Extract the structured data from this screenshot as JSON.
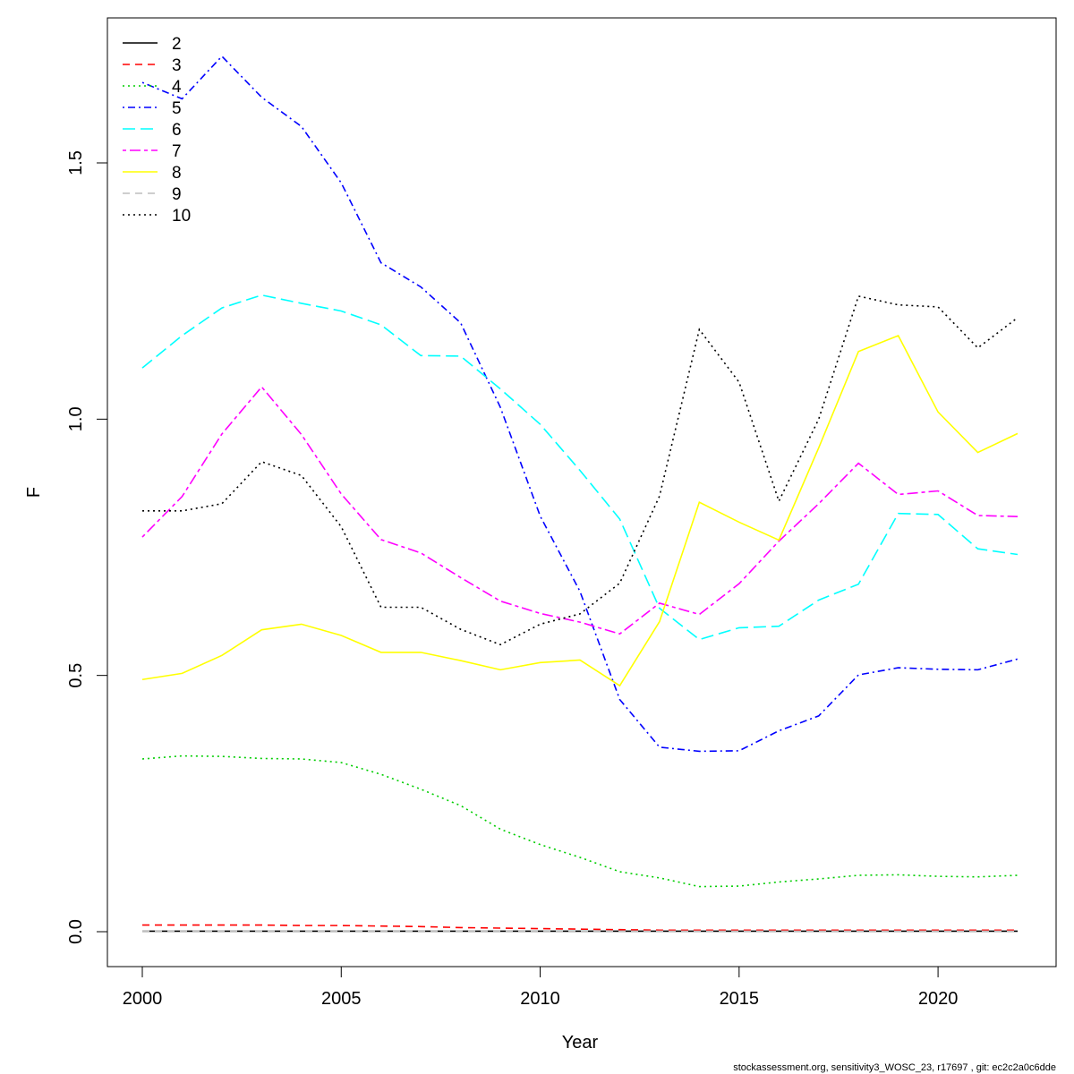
{
  "footer": "stockassessment.org, sensitivity3_WOSC_23, r17697 , git: ec2c2a0c6dde",
  "chart_data": {
    "type": "line",
    "xlabel": "Year",
    "ylabel": "F",
    "xlim": [
      2000,
      2022
    ],
    "ylim": [
      0,
      1.7
    ],
    "x_ticks": [
      2000,
      2005,
      2010,
      2015,
      2020
    ],
    "y_ticks": [
      0.0,
      0.5,
      1.0,
      1.5
    ],
    "y_tick_labels": [
      "0.0",
      "0.5",
      "1.0",
      "1.5"
    ],
    "grid": false,
    "legend_position": "top-left",
    "x": [
      2000,
      2001,
      2002,
      2003,
      2004,
      2005,
      2006,
      2007,
      2008,
      2009,
      2010,
      2011,
      2012,
      2013,
      2014,
      2015,
      2016,
      2017,
      2018,
      2019,
      2020,
      2021,
      2022
    ],
    "series": [
      {
        "name": "2",
        "color": "#000000",
        "dash": "solid",
        "values": [
          0.001,
          0.001,
          0.001,
          0.001,
          0.001,
          0.001,
          0.001,
          0.001,
          0.001,
          0.001,
          0.001,
          0.001,
          0.001,
          0.001,
          0.001,
          0.001,
          0.001,
          0.001,
          0.001,
          0.001,
          0.001,
          0.001,
          0.001
        ]
      },
      {
        "name": "3",
        "color": "#ff0000",
        "dash": "dashed",
        "values": [
          0.013,
          0.013,
          0.013,
          0.013,
          0.012,
          0.012,
          0.011,
          0.01,
          0.008,
          0.007,
          0.006,
          0.005,
          0.004,
          0.003,
          0.003,
          0.003,
          0.003,
          0.003,
          0.003,
          0.003,
          0.003,
          0.003,
          0.003
        ]
      },
      {
        "name": "4",
        "color": "#00cd00",
        "dash": "dotted",
        "values": [
          0.337,
          0.343,
          0.342,
          0.338,
          0.337,
          0.33,
          0.307,
          0.278,
          0.246,
          0.2,
          0.17,
          0.145,
          0.117,
          0.105,
          0.088,
          0.089,
          0.097,
          0.103,
          0.11,
          0.111,
          0.108,
          0.107,
          0.11
        ]
      },
      {
        "name": "5",
        "color": "#0000ff",
        "dash": "dotdash",
        "values": [
          1.657,
          1.625,
          1.708,
          1.628,
          1.571,
          1.461,
          1.305,
          1.258,
          1.188,
          1.023,
          0.811,
          0.664,
          0.453,
          0.36,
          0.352,
          0.353,
          0.392,
          0.421,
          0.501,
          0.515,
          0.512,
          0.511,
          0.532
        ]
      },
      {
        "name": "6",
        "color": "#00ffff",
        "dash": "longdash",
        "values": [
          1.1,
          1.163,
          1.217,
          1.242,
          1.226,
          1.211,
          1.184,
          1.124,
          1.123,
          1.059,
          0.99,
          0.9,
          0.805,
          0.631,
          0.57,
          0.593,
          0.596,
          0.647,
          0.678,
          0.816,
          0.814,
          0.747,
          0.736
        ]
      },
      {
        "name": "7",
        "color": "#ff00ff",
        "dash": "twodash",
        "values": [
          0.77,
          0.849,
          0.971,
          1.063,
          0.97,
          0.854,
          0.765,
          0.739,
          0.691,
          0.645,
          0.621,
          0.604,
          0.581,
          0.641,
          0.619,
          0.679,
          0.762,
          0.835,
          0.914,
          0.853,
          0.86,
          0.812,
          0.81
        ]
      },
      {
        "name": "8",
        "color": "#ffff00",
        "dash": "solid",
        "values": [
          0.492,
          0.504,
          0.539,
          0.589,
          0.6,
          0.578,
          0.545,
          0.545,
          0.529,
          0.511,
          0.525,
          0.53,
          0.48,
          0.605,
          0.838,
          0.799,
          0.764,
          0.944,
          1.132,
          1.163,
          1.014,
          0.935,
          0.972
        ]
      },
      {
        "name": "9",
        "color": "#bebebe",
        "dash": "dashed",
        "values": [
          0.001,
          0.001,
          0.001,
          0.001,
          0.001,
          0.001,
          0.001,
          0.001,
          0.001,
          0.001,
          0.001,
          0.001,
          0.001,
          0.001,
          0.001,
          0.001,
          0.001,
          0.001,
          0.001,
          0.001,
          0.001,
          0.001,
          0.001
        ]
      },
      {
        "name": "10",
        "color": "#000000",
        "dash": "dotted",
        "values": [
          0.821,
          0.821,
          0.835,
          0.917,
          0.89,
          0.79,
          0.633,
          0.633,
          0.59,
          0.56,
          0.6,
          0.62,
          0.68,
          0.85,
          1.175,
          1.072,
          0.84,
          1.0,
          1.24,
          1.223,
          1.219,
          1.139,
          1.198
        ]
      }
    ]
  }
}
